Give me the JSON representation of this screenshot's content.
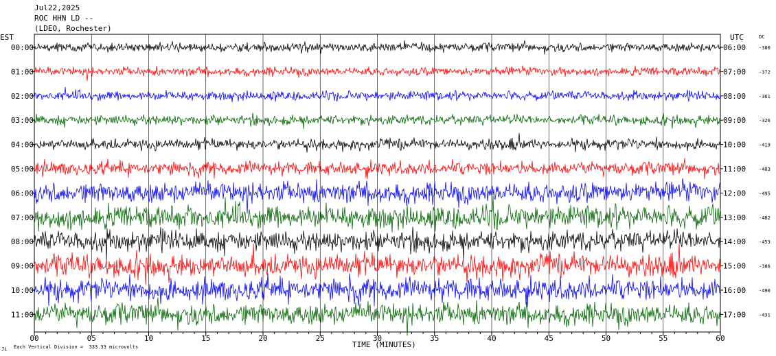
{
  "header": {
    "date": "Jul22,2025",
    "station": "ROC HHN LD --",
    "network": "(LDEO, Rochester)"
  },
  "left_axis_title": "EST",
  "right_axis_title": "UTC",
  "dc_title": "DC",
  "footer": {
    "scale_text": "Each Vertical Division =  333.33 microvolts",
    "logo_text": "JL"
  },
  "colors": {
    "black": "#000000",
    "red": "#ff0000",
    "blue": "#0000ff",
    "green": "#006400",
    "grid": "#000000",
    "background": "#ffffff"
  },
  "chart_data": {
    "type": "line",
    "title": "",
    "xlabel": "TIME (MINUTES)",
    "ylabel": "",
    "xlim": [
      0,
      60
    ],
    "x_ticks": [
      "00",
      "05",
      "10",
      "15",
      "20",
      "25",
      "30",
      "35",
      "40",
      "45",
      "50",
      "55",
      "60"
    ],
    "x_minor_tick_step": 1,
    "vertical_grid_minutes": [
      5,
      10,
      15,
      20,
      25,
      30,
      35,
      40,
      45,
      50,
      55
    ],
    "rows": [
      {
        "est": "00:00",
        "utc": "06:00",
        "dc": "-380",
        "color": "black",
        "activity": 0.25
      },
      {
        "est": "01:00",
        "utc": "07:00",
        "dc": "-372",
        "color": "red",
        "activity": 0.22
      },
      {
        "est": "02:00",
        "utc": "08:00",
        "dc": "-361",
        "color": "blue",
        "activity": 0.25
      },
      {
        "est": "03:00",
        "utc": "09:00",
        "dc": "-326",
        "color": "green",
        "activity": 0.3
      },
      {
        "est": "04:00",
        "utc": "10:00",
        "dc": "-419",
        "color": "black",
        "activity": 0.35
      },
      {
        "est": "05:00",
        "utc": "11:00",
        "dc": "-403",
        "color": "red",
        "activity": 0.5
      },
      {
        "est": "06:00",
        "utc": "12:00",
        "dc": "-495",
        "color": "blue",
        "activity": 0.9
      },
      {
        "est": "07:00",
        "utc": "13:00",
        "dc": "-482",
        "color": "green",
        "activity": 1.0
      },
      {
        "est": "08:00",
        "utc": "14:00",
        "dc": "-453",
        "color": "black",
        "activity": 0.9
      },
      {
        "est": "09:00",
        "utc": "15:00",
        "dc": "-386",
        "color": "red",
        "activity": 1.0
      },
      {
        "est": "10:00",
        "utc": "16:00",
        "dc": "-490",
        "color": "blue",
        "activity": 1.0
      },
      {
        "est": "11:00",
        "utc": "17:00",
        "dc": "-431",
        "color": "green",
        "activity": 0.95
      }
    ]
  }
}
